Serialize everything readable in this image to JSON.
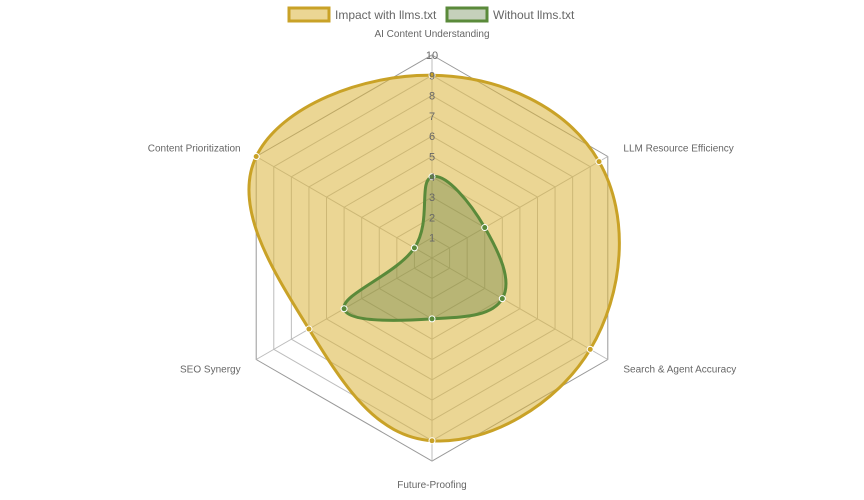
{
  "chart_data": {
    "type": "radar",
    "categories": [
      "AI Content Understanding",
      "LLM Resource Efficiency",
      "Search & Agent Accuracy",
      "Future-Proofing",
      "SEO Synergy",
      "Content Prioritization"
    ],
    "series": [
      {
        "name": "Impact with llms.txt",
        "values": [
          9,
          9.5,
          9,
          9,
          7,
          10
        ],
        "color": "#c9a227",
        "fill": "rgba(218,180,60,0.55)"
      },
      {
        "name": "Without llms.txt",
        "values": [
          4,
          3,
          4,
          3,
          5,
          1
        ],
        "color": "#5a8a3a",
        "fill": "rgba(90,120,60,0.35)"
      }
    ],
    "r_ticks": [
      "1",
      "2",
      "3",
      "4",
      "5",
      "6",
      "7",
      "8",
      "9",
      "10"
    ],
    "r_range": [
      0,
      10
    ],
    "legend_position": "top",
    "grid": true
  }
}
